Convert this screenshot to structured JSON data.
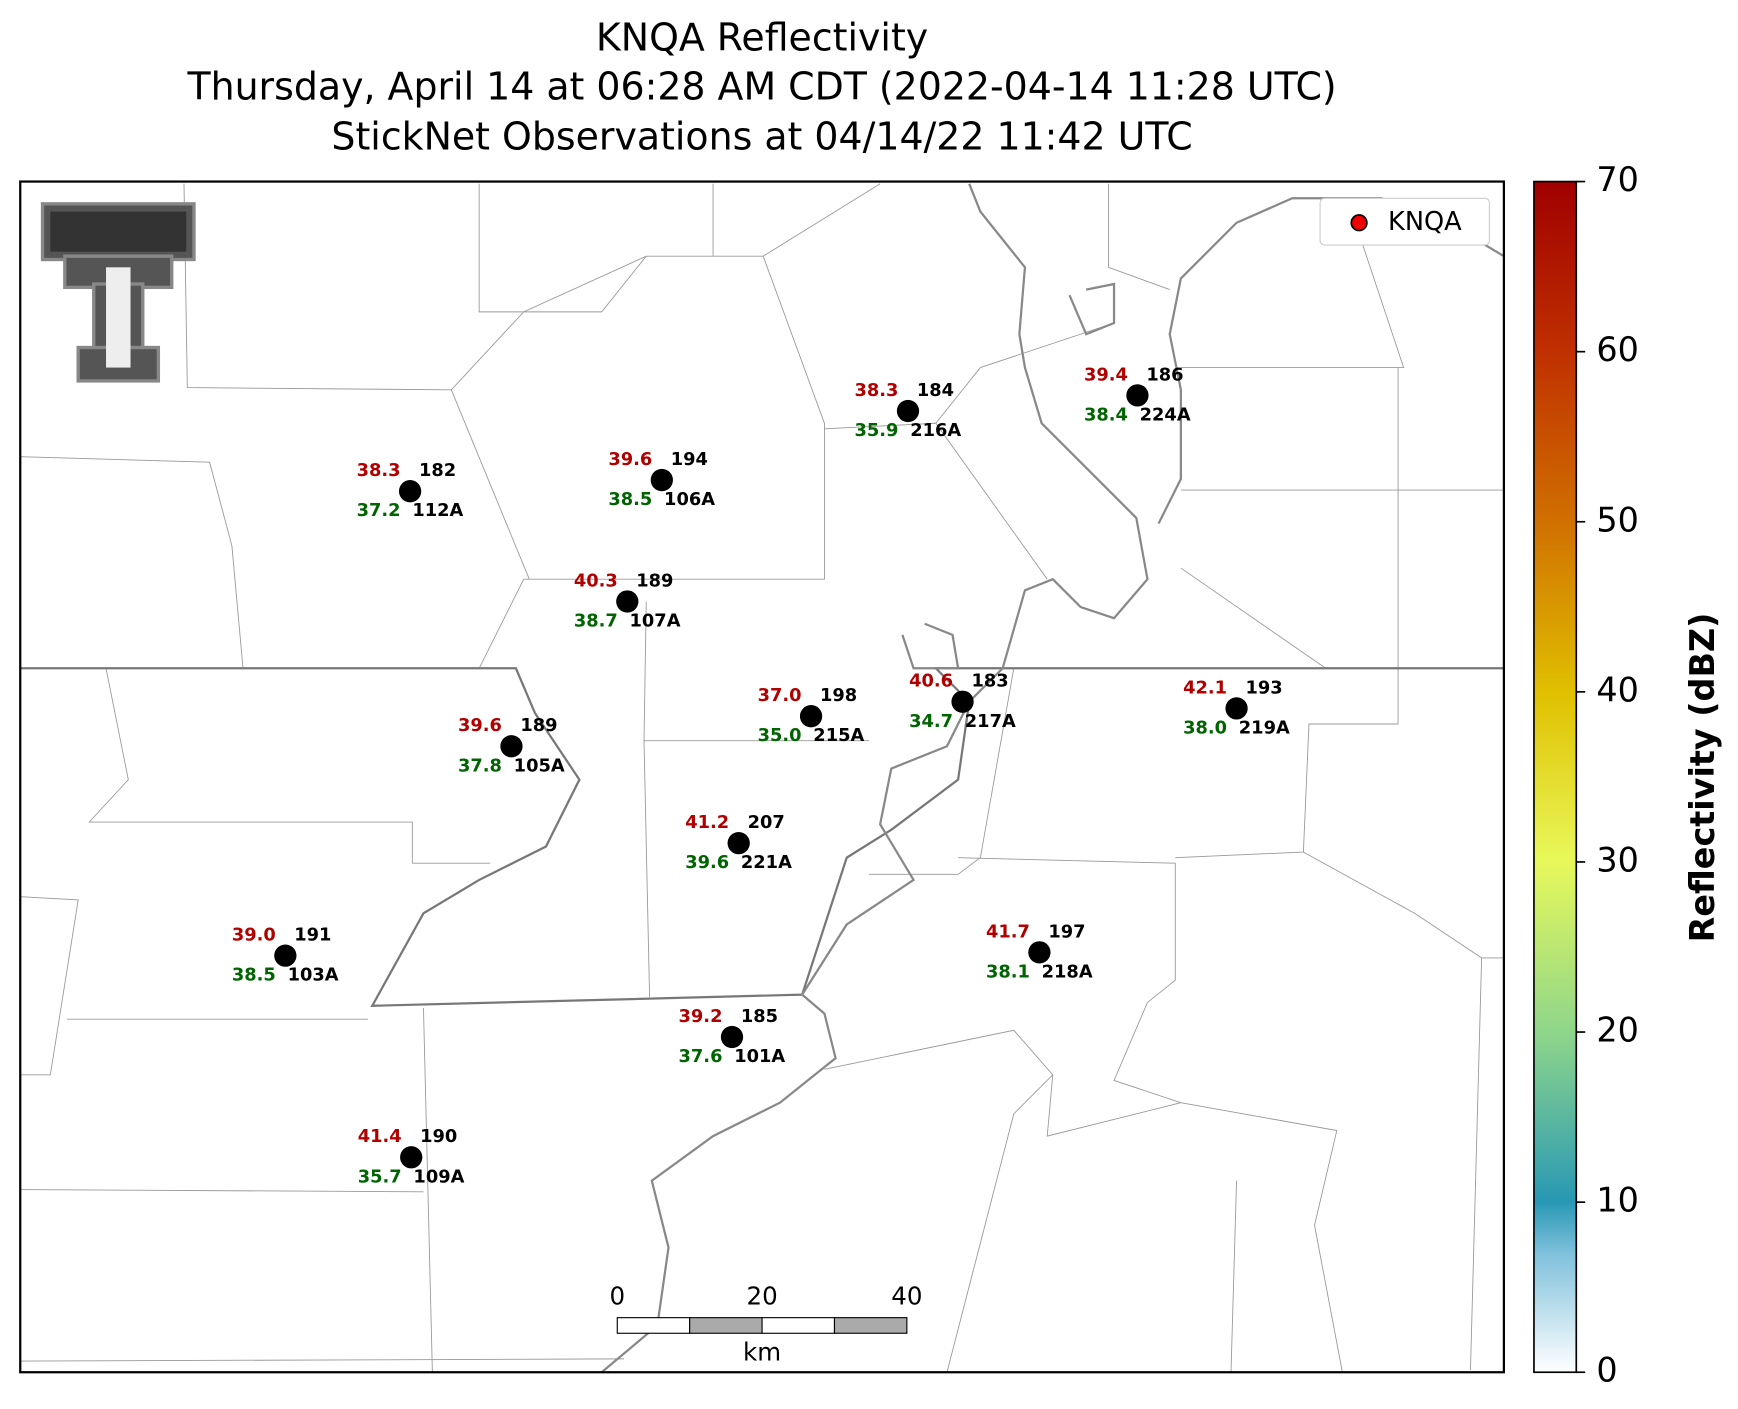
{
  "title": [
    "KNQA Reflectivity",
    "Thursday, April 14 at 06:28 AM CDT (2022-04-14 11:28 UTC)",
    "StickNet Observations at 04/14/22 11:42 UTC"
  ],
  "legend": {
    "label": "KNQA"
  },
  "colorbar": {
    "label": "Reflectivity (dBZ)",
    "lim": [
      0,
      70
    ],
    "ticks": [
      0,
      10,
      20,
      30,
      40,
      50,
      60,
      70
    ]
  },
  "stations": [
    {
      "temperature": "38.3",
      "dewpoint": "37.2",
      "number": "182",
      "id": "112A"
    },
    {
      "temperature": "39.6",
      "dewpoint": "38.5",
      "number": "194",
      "id": "106A"
    },
    {
      "temperature": "38.3",
      "dewpoint": "35.9",
      "number": "184",
      "id": "216A"
    },
    {
      "temperature": "39.4",
      "dewpoint": "38.4",
      "number": "186",
      "id": "224A"
    },
    {
      "temperature": "40.3",
      "dewpoint": "38.7",
      "number": "189",
      "id": "107A"
    },
    {
      "temperature": "37.0",
      "dewpoint": "35.0",
      "number": "198",
      "id": "215A"
    },
    {
      "temperature": "40.6",
      "dewpoint": "34.7",
      "number": "183",
      "id": "217A"
    },
    {
      "temperature": "42.1",
      "dewpoint": "38.0",
      "number": "193",
      "id": "219A"
    },
    {
      "temperature": "39.6",
      "dewpoint": "37.8",
      "number": "189",
      "id": "105A"
    },
    {
      "temperature": "41.2",
      "dewpoint": "39.6",
      "number": "207",
      "id": "221A"
    },
    {
      "temperature": "39.0",
      "dewpoint": "38.5",
      "number": "191",
      "id": "103A"
    },
    {
      "temperature": "41.7",
      "dewpoint": "38.1",
      "number": "197",
      "id": "218A"
    },
    {
      "temperature": "39.2",
      "dewpoint": "37.6",
      "number": "185",
      "id": "101A"
    },
    {
      "temperature": "41.4",
      "dewpoint": "35.7",
      "number": "190",
      "id": "109A"
    }
  ],
  "scale_bar": {
    "labels": [
      "0",
      "20",
      "40"
    ],
    "unit": "km"
  }
}
